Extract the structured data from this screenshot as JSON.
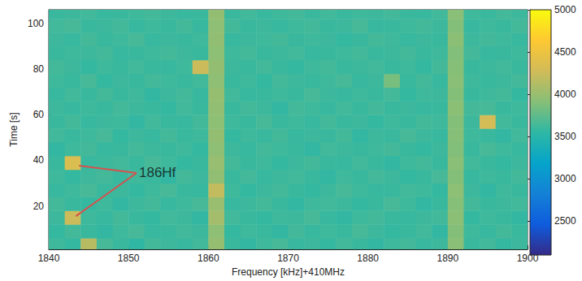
{
  "chart_data": {
    "type": "heatmap",
    "xlabel": "Frequency [kHz]+410MHz",
    "ylabel": "Time [s]",
    "xlim": [
      1840,
      1900
    ],
    "xticks": [
      1840,
      1850,
      1860,
      1870,
      1880,
      1890,
      1900
    ],
    "ylim": [
      1,
      106
    ],
    "yticks": [
      20,
      40,
      60,
      80,
      100
    ],
    "grid": false,
    "cells": {
      "x_bins": [
        1840,
        1842,
        1844,
        1846,
        1848,
        1850,
        1852,
        1854,
        1856,
        1858,
        1860,
        1862,
        1864,
        1866,
        1868,
        1870,
        1872,
        1874,
        1876,
        1878,
        1880,
        1882,
        1884,
        1886,
        1888,
        1890,
        1892,
        1894,
        1896,
        1898,
        1900
      ],
      "y_bins": [
        0,
        6,
        12,
        18,
        24,
        30,
        36,
        42,
        48,
        54,
        60,
        66,
        72,
        78,
        84,
        90,
        96,
        102,
        108
      ],
      "values": [
        [
          3620,
          3580,
          4150,
          3650,
          3600,
          3560,
          3640,
          3610,
          3590,
          3630,
          3980,
          3600,
          3570,
          3620,
          3650,
          3590,
          3610,
          3580,
          3630,
          3600,
          3570,
          3620,
          3640,
          3590,
          3610,
          3920,
          3600,
          3630,
          3580,
          3610
        ],
        [
          3580,
          3640,
          3600,
          3570,
          3620,
          3650,
          3590,
          3600,
          3630,
          3610,
          3950,
          3580,
          3620,
          3600,
          3570,
          3640,
          3590,
          3620,
          3600,
          3650,
          3610,
          3580,
          3600,
          3630,
          3570,
          3900,
          3620,
          3590,
          3640,
          3600
        ],
        [
          3610,
          4250,
          3620,
          3590,
          3640,
          3600,
          3580,
          3630,
          3610,
          3570,
          4050,
          3630,
          3600,
          3580,
          3620,
          3610,
          3650,
          3590,
          3570,
          3620,
          3640,
          3600,
          3590,
          3610,
          3630,
          3930,
          3580,
          3620,
          3600,
          3570
        ],
        [
          3640,
          3600,
          3580,
          3620,
          3570,
          3610,
          3640,
          3590,
          3620,
          3650,
          4000,
          3590,
          3610,
          3640,
          3600,
          3570,
          3620,
          3630,
          3610,
          3580,
          3600,
          3650,
          3620,
          3570,
          3600,
          3910,
          3640,
          3600,
          3610,
          3630
        ],
        [
          3590,
          3620,
          3650,
          3600,
          3610,
          3580,
          3620,
          3650,
          3600,
          3590,
          4200,
          3620,
          3580,
          3610,
          3640,
          3600,
          3580,
          3610,
          3650,
          3620,
          3590,
          3600,
          3630,
          3620,
          3580,
          3940,
          3610,
          3570,
          3620,
          3600
        ],
        [
          3620,
          3580,
          3610,
          3640,
          3590,
          3620,
          3600,
          3570,
          3640,
          3610,
          3960,
          3600,
          3640,
          3590,
          3610,
          3630,
          3600,
          3570,
          3620,
          3600,
          3640,
          3610,
          3580,
          3600,
          3650,
          3900,
          3590,
          3620,
          3600,
          3640
        ],
        [
          3600,
          4350,
          3590,
          3610,
          3630,
          3600,
          3650,
          3620,
          3580,
          3600,
          3990,
          3640,
          3600,
          3620,
          3580,
          3610,
          3640,
          3600,
          3590,
          3630,
          3600,
          3570,
          3620,
          3640,
          3600,
          3920,
          3630,
          3600,
          3580,
          3610
        ],
        [
          3570,
          3620,
          3640,
          3590,
          3600,
          3640,
          3610,
          3600,
          3620,
          3580,
          3950,
          3610,
          3590,
          3640,
          3620,
          3600,
          3570,
          3630,
          3610,
          3600,
          3620,
          3640,
          3600,
          3580,
          3610,
          3890,
          3600,
          3650,
          3620,
          3590
        ],
        [
          3630,
          3600,
          3620,
          3650,
          3580,
          3610,
          3590,
          3640,
          3600,
          3620,
          3970,
          3580,
          3620,
          3600,
          3640,
          3590,
          3610,
          3600,
          3640,
          3570,
          3610,
          3600,
          3650,
          3610,
          3590,
          3910,
          3620,
          3600,
          3570,
          3630
        ],
        [
          3600,
          3640,
          3590,
          3610,
          3620,
          3570,
          3630,
          3600,
          3590,
          3640,
          3940,
          3620,
          3600,
          3650,
          3600,
          3620,
          3590,
          3640,
          3600,
          3610,
          3580,
          3620,
          3600,
          3640,
          3620,
          3900,
          3610,
          4300,
          3630,
          3600
        ],
        [
          3610,
          3590,
          3620,
          3600,
          3640,
          3610,
          3600,
          3580,
          3630,
          3600,
          3960,
          3600,
          3640,
          3610,
          3570,
          3640,
          3620,
          3590,
          3630,
          3600,
          3640,
          3600,
          3610,
          3590,
          3600,
          3930,
          3640,
          3650,
          3600,
          3620
        ],
        [
          3590,
          3630,
          3600,
          3640,
          3600,
          3620,
          3570,
          3610,
          3640,
          3590,
          3980,
          3630,
          3590,
          3600,
          3620,
          3600,
          3650,
          3610,
          3590,
          3620,
          3600,
          3640,
          3580,
          3620,
          3610,
          3900,
          3600,
          3620,
          3640,
          3580
        ],
        [
          3620,
          3600,
          3650,
          3580,
          3610,
          3600,
          3640,
          3620,
          3600,
          3630,
          3950,
          3600,
          3620,
          3580,
          3640,
          3610,
          3600,
          3620,
          3650,
          3590,
          3610,
          3850,
          3600,
          3640,
          3590,
          3920,
          3620,
          3600,
          3610,
          3640
        ],
        [
          3640,
          3610,
          3580,
          3620,
          3600,
          3630,
          3600,
          3590,
          3620,
          4250,
          3970,
          3610,
          3600,
          3640,
          3600,
          3580,
          3620,
          3640,
          3600,
          3610,
          3630,
          3600,
          3620,
          3580,
          3640,
          3910,
          3600,
          3610,
          3630,
          3600
        ],
        [
          3600,
          3620,
          3610,
          3640,
          3590,
          3600,
          3620,
          3640,
          3610,
          3600,
          3940,
          3620,
          3640,
          3600,
          3610,
          3630,
          3590,
          3600,
          3620,
          3640,
          3600,
          3610,
          3640,
          3600,
          3620,
          3890,
          3640,
          3590,
          3600,
          3620
        ],
        [
          3610,
          3590,
          3640,
          3600,
          3620,
          3650,
          3590,
          3610,
          3600,
          3620,
          3960,
          3590,
          3610,
          3620,
          3640,
          3600,
          3620,
          3610,
          3580,
          3600,
          3640,
          3620,
          3590,
          3610,
          3600,
          3930,
          3610,
          3640,
          3620,
          3590
        ],
        [
          3630,
          3650,
          3600,
          3610,
          3640,
          3590,
          3620,
          3600,
          3640,
          3590,
          3950,
          3640,
          3600,
          3610,
          3590,
          3620,
          3640,
          3600,
          3610,
          3650,
          3590,
          3600,
          3620,
          3640,
          3610,
          3900,
          3590,
          3620,
          3600,
          3640
        ],
        [
          3600,
          3610,
          3630,
          3590,
          3600,
          3620,
          3640,
          3610,
          3590,
          3600,
          3970,
          3600,
          3630,
          3590,
          3620,
          3640,
          3600,
          3630,
          3600,
          3620,
          3610,
          3640,
          3600,
          3590,
          3630,
          3920,
          3620,
          3600,
          3640,
          3610
        ]
      ]
    },
    "colorbar": {
      "range": [
        2100,
        5000
      ],
      "ticks": [
        2500,
        3000,
        3500,
        4000,
        4500,
        5000
      ]
    },
    "annotations": [
      {
        "text": "186Hf",
        "x": 1851,
        "y": 34.5,
        "color": "#d4524e",
        "points": [
          [
            1843.8,
            37.7
          ],
          [
            1843.4,
            15.6
          ]
        ]
      }
    ]
  }
}
